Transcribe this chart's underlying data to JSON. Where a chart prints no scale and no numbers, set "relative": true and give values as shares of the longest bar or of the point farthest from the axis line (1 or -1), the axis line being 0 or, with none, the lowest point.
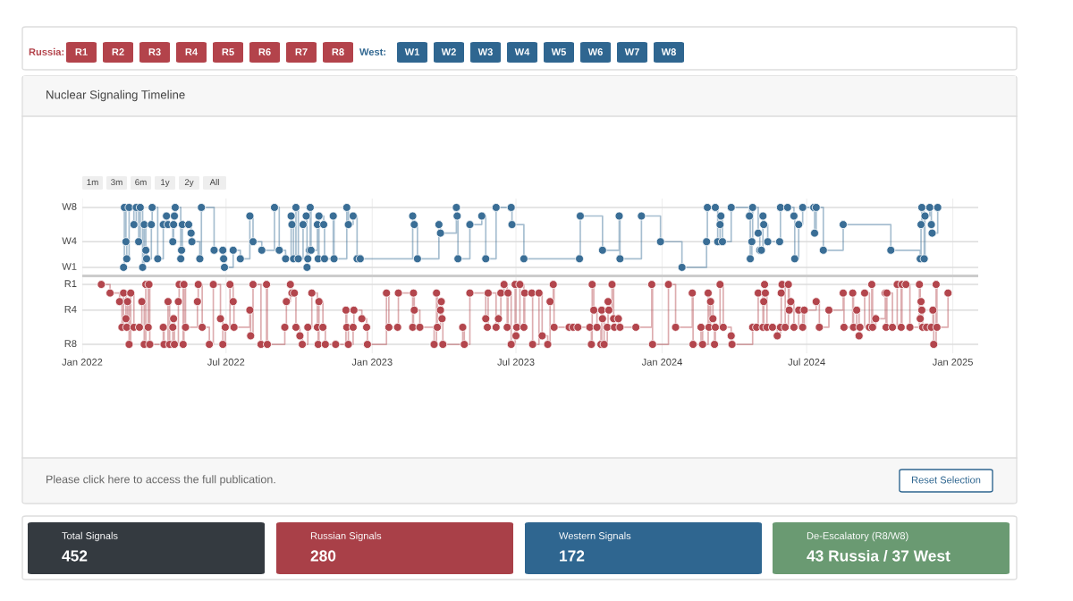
{
  "chart_data": [
    {
      "type": "other",
      "annotations": [
        "Russia:",
        "R1",
        "R2",
        "R3",
        "R4",
        "R5",
        "R6",
        "R7",
        "R8",
        "West:",
        "W1",
        "W2",
        "W3",
        "W4",
        "W5",
        "W6",
        "W7",
        "W8"
      ]
    },
    {
      "type": "step",
      "title": "Nuclear Signaling Timeline",
      "marker": "circle",
      "line_style": "solid",
      "grid": "x",
      "relative": true,
      "xlim": [
        "2022-01-01",
        "2025-02-02"
      ],
      "xticks": [
        {
          "value": "2022-01-01",
          "label": "Jan 2022"
        },
        {
          "value": "2022-07-01",
          "label": "Jul 2022"
        },
        {
          "value": "2023-01-01",
          "label": "Jan 2023"
        },
        {
          "value": "2023-07-01",
          "label": "Jul 2023"
        },
        {
          "value": "2024-01-01",
          "label": "Jan 2024"
        },
        {
          "value": "2024-07-01",
          "label": "Jul 2024"
        },
        {
          "value": "2025-01-01",
          "label": "Jan 2025"
        }
      ],
      "ref_lines": [
        {
          "axis": "y",
          "value": 0,
          "label": "R8",
          "color": "#dcdcdc"
        },
        {
          "axis": "y",
          "value": 0.25,
          "label": "R4",
          "color": "#dcdcdc"
        },
        {
          "axis": "y",
          "value": 0.4375,
          "label": "R1",
          "color": "#dcdcdc"
        },
        {
          "axis": "y",
          "value": 0.5,
          "label": null,
          "color": "#cccccc"
        },
        {
          "axis": "y",
          "value": 0.5625,
          "label": "W1",
          "color": "#dcdcdc"
        },
        {
          "axis": "y",
          "value": 0.75,
          "label": "W4",
          "color": "#dcdcdc"
        },
        {
          "axis": "y",
          "value": 1,
          "label": "W8",
          "color": "#dcdcdc"
        }
      ],
      "annotations": [
        "1m",
        "3m",
        "6m",
        "1y",
        "2y",
        "All",
        "Please click here to access the full publication.",
        "Reset Selection"
      ],
      "series": [
        {
          "color": "#3a6e96",
          "x": [
            "2022-02-22",
            "2022-02-23",
            "2022-02-25",
            "2022-02-26",
            "2022-03-01",
            "2022-03-07",
            "2022-03-10",
            "2022-03-13",
            "2022-03-15",
            "2022-03-18",
            "2022-03-20",
            "2022-03-22",
            "2022-03-23",
            "2022-03-29",
            "2022-03-30",
            "2022-04-06",
            "2022-04-13",
            "2022-04-17",
            "2022-04-19",
            "2022-04-25",
            "2022-04-26",
            "2022-04-27",
            "2022-04-28",
            "2022-05-05",
            "2022-05-06",
            "2022-05-07",
            "2022-05-15",
            "2022-05-18",
            "2022-05-19",
            "2022-05-29",
            "2022-05-31",
            "2022-06-16",
            "2022-06-27",
            "2022-06-28",
            "2022-06-29",
            "2022-07-10",
            "2022-07-19",
            "2022-07-31",
            "2022-08-04",
            "2022-08-15",
            "2022-08-31",
            "2022-09-06",
            "2022-09-14",
            "2022-09-21",
            "2022-09-22",
            "2022-09-24",
            "2022-09-27",
            "2022-09-30",
            "2022-10-06",
            "2022-10-10",
            "2022-10-11",
            "2022-10-12",
            "2022-10-14",
            "2022-10-15",
            "2022-10-16",
            "2022-10-24",
            "2022-10-25",
            "2022-10-26",
            "2022-11-01",
            "2022-11-02",
            "2022-11-13",
            "2022-11-14",
            "2022-11-30",
            "2022-12-02",
            "2022-12-08",
            "2022-12-13",
            "2022-12-17",
            "2023-02-21",
            "2023-02-23",
            "2023-02-27",
            "2023-03-26",
            "2023-03-28",
            "2023-04-17",
            "2023-04-18",
            "2023-04-19",
            "2023-05-04",
            "2023-05-19",
            "2023-05-24",
            "2023-06-06",
            "2023-06-25",
            "2023-06-26",
            "2023-07-11",
            "2023-09-19",
            "2023-09-20",
            "2023-10-18",
            "2023-11-08",
            "2023-11-09",
            "2023-12-06",
            "2023-12-30",
            "2024-01-26",
            "2024-02-26",
            "2024-02-27",
            "2024-03-08",
            "2024-03-11",
            "2024-03-14",
            "2024-03-15",
            "2024-03-17",
            "2024-03-28",
            "2024-04-20",
            "2024-04-21",
            "2024-04-23",
            "2024-04-24",
            "2024-05-01",
            "2024-05-03",
            "2024-05-05",
            "2024-05-07",
            "2024-05-08",
            "2024-05-13",
            "2024-05-28",
            "2024-05-29",
            "2024-06-07",
            "2024-06-15",
            "2024-06-16",
            "2024-06-21",
            "2024-06-26",
            "2024-07-10",
            "2024-07-11",
            "2024-07-13",
            "2024-07-22",
            "2024-08-16",
            "2024-10-15",
            "2024-11-21",
            "2024-11-22",
            "2024-11-23",
            "2024-11-26",
            "2024-11-27",
            "2024-12-03",
            "2024-12-05",
            "2024-12-06",
            "2024-12-13"
          ],
          "values": [
            0.5625,
            1,
            0.75,
            0.625,
            1,
            0.875,
            1,
            0.75,
            1,
            0.5625,
            0.875,
            0.6875,
            0.625,
            0.875,
            1,
            0.625,
            0.875,
            0.9375,
            0.875,
            0.75,
            0.875,
            0.9375,
            1,
            0.625,
            0.6875,
            0.875,
            0.875,
            0.8125,
            0.75,
            0.625,
            1,
            0.6875,
            0.6875,
            0.625,
            0.5625,
            0.6875,
            0.625,
            0.9375,
            0.75,
            0.6875,
            1,
            0.6875,
            0.625,
            0.9375,
            0.875,
            0.625,
            1,
            0.625,
            0.875,
            0.9375,
            0.5625,
            0.625,
            0.6875,
            1,
            0.6875,
            0.875,
            0.625,
            0.9375,
            0.875,
            0.625,
            0.9375,
            0.625,
            1,
            0.875,
            0.9375,
            0.625,
            0.625,
            0.9375,
            0.875,
            0.625,
            0.875,
            0.8125,
            1,
            0.9375,
            0.625,
            0.875,
            0.9375,
            0.625,
            1,
            1,
            0.875,
            0.625,
            0.625,
            0.9375,
            0.6875,
            0.9375,
            0.625,
            0.9375,
            0.75,
            0.5625,
            0.75,
            1,
            1,
            0.75,
            0.875,
            0.9375,
            0.75,
            1,
            0.9375,
            0.625,
            0.75,
            1,
            0.8125,
            0.6875,
            0.6875,
            0.9375,
            0.875,
            0.75,
            0.75,
            1,
            1,
            0.9375,
            0.625,
            0.875,
            1,
            1,
            0.8125,
            1,
            0.6875,
            0.875,
            0.6875,
            0.625,
            0.875,
            1,
            0.625,
            0.9375,
            1,
            0.875,
            0.8125,
            1
          ]
        },
        {
          "color": "#b3464d",
          "x": [
            "2022-01-25",
            "2022-02-05",
            "2022-02-17",
            "2022-02-20",
            "2022-02-22",
            "2022-02-25",
            "2022-02-26",
            "2022-02-27",
            "2022-03-01",
            "2022-03-03",
            "2022-03-07",
            "2022-03-14",
            "2022-03-17",
            "2022-03-20",
            "2022-03-22",
            "2022-03-25",
            "2022-03-26",
            "2022-03-27",
            "2022-04-13",
            "2022-04-14",
            "2022-04-19",
            "2022-04-21",
            "2022-04-25",
            "2022-04-26",
            "2022-04-27",
            "2022-05-02",
            "2022-05-03",
            "2022-05-08",
            "2022-05-09",
            "2022-05-11",
            "2022-05-26",
            "2022-05-27",
            "2022-06-01",
            "2022-06-10",
            "2022-06-15",
            "2022-06-24",
            "2022-06-27",
            "2022-06-30",
            "2022-07-06",
            "2022-07-10",
            "2022-07-11",
            "2022-07-31",
            "2022-08-01",
            "2022-08-04",
            "2022-08-14",
            "2022-08-21",
            "2022-08-22",
            "2022-09-13",
            "2022-09-15",
            "2022-09-20",
            "2022-09-22",
            "2022-09-25",
            "2022-09-27",
            "2022-10-02",
            "2022-10-05",
            "2022-10-12",
            "2022-10-17",
            "2022-10-24",
            "2022-10-25",
            "2022-10-26",
            "2022-10-31",
            "2022-11-03",
            "2022-11-16",
            "2022-11-29",
            "2022-11-30",
            "2022-12-02",
            "2022-12-08",
            "2022-12-09",
            "2022-12-19",
            "2022-12-25",
            "2022-12-26",
            "2023-01-19",
            "2023-01-22",
            "2023-02-02",
            "2023-02-03",
            "2023-02-21",
            "2023-02-22",
            "2023-02-23",
            "2023-03-02",
            "2023-03-20",
            "2023-03-23",
            "2023-03-24",
            "2023-03-28",
            "2023-03-29",
            "2023-03-30",
            "2023-03-31",
            "2023-04-25",
            "2023-04-27",
            "2023-05-04",
            "2023-05-24",
            "2023-05-26",
            "2023-05-27",
            "2023-06-06",
            "2023-06-09",
            "2023-06-12",
            "2023-06-16",
            "2023-06-20",
            "2023-06-21",
            "2023-06-25",
            "2023-06-30",
            "2023-07-01",
            "2023-07-02",
            "2023-07-06",
            "2023-07-11",
            "2023-07-12",
            "2023-07-21",
            "2023-07-22",
            "2023-07-30",
            "2023-08-03",
            "2023-08-10",
            "2023-08-13",
            "2023-08-17",
            "2023-08-18",
            "2023-09-06",
            "2023-09-11",
            "2023-09-17",
            "2023-10-02",
            "2023-10-04",
            "2023-10-05",
            "2023-10-07",
            "2023-10-11",
            "2023-10-16",
            "2023-10-17",
            "2023-10-18",
            "2023-10-20",
            "2023-10-24",
            "2023-10-25",
            "2023-10-26",
            "2023-10-30",
            "2023-11-01",
            "2023-11-02",
            "2023-11-07",
            "2023-11-09",
            "2023-11-29",
            "2023-12-19",
            "2023-12-20",
            "2024-01-09",
            "2024-01-18",
            "2024-02-08",
            "2024-02-09",
            "2024-02-19",
            "2024-02-21",
            "2024-02-28",
            "2024-02-29",
            "2024-03-02",
            "2024-03-05",
            "2024-03-07",
            "2024-03-08",
            "2024-03-14",
            "2024-03-18",
            "2024-03-28",
            "2024-03-29",
            "2024-04-24",
            "2024-04-29",
            "2024-05-01",
            "2024-05-07",
            "2024-05-08",
            "2024-05-09",
            "2024-05-10",
            "2024-05-12",
            "2024-05-19",
            "2024-05-25",
            "2024-05-29",
            "2024-05-30",
            "2024-05-31",
            "2024-06-04",
            "2024-06-08",
            "2024-06-09",
            "2024-06-11",
            "2024-06-15",
            "2024-06-21",
            "2024-06-26",
            "2024-06-28",
            "2024-07-13",
            "2024-07-17",
            "2024-07-29",
            "2024-08-16",
            "2024-08-17",
            "2024-08-28",
            "2024-08-29",
            "2024-09-02",
            "2024-09-05",
            "2024-09-06",
            "2024-09-12",
            "2024-09-18",
            "2024-09-21",
            "2024-09-22",
            "2024-09-26",
            "2024-10-08",
            "2024-10-09",
            "2024-10-10",
            "2024-10-17",
            "2024-10-23",
            "2024-10-28",
            "2024-10-29",
            "2024-11-03",
            "2024-11-08",
            "2024-11-20",
            "2024-11-21",
            "2024-11-22",
            "2024-11-23",
            "2024-11-24",
            "2024-11-29",
            "2024-12-05",
            "2024-12-07",
            "2024-12-08",
            "2024-12-11",
            "2024-12-12",
            "2024-12-26"
          ],
          "values": [
            0.4375,
            0.375,
            0.3125,
            0.125,
            0.375,
            0.1875,
            0.125,
            0.3125,
            0,
            0.375,
            0.125,
            0.125,
            0.3125,
            0,
            0.4375,
            0.125,
            0.4375,
            0,
            0.125,
            0,
            0.3125,
            0,
            0.125,
            0.1875,
            0,
            0.3125,
            0.4375,
            0,
            0.4375,
            0.125,
            0.3125,
            0.4375,
            0.125,
            0,
            0.4375,
            0.1875,
            0,
            0.125,
            0.4375,
            0.3125,
            0.125,
            0.25,
            0.0625,
            0.4375,
            0,
            0.4375,
            0,
            0.125,
            0.3125,
            0.4375,
            0.375,
            0.375,
            0.125,
            0.0625,
            0,
            0.125,
            0.375,
            0.125,
            0,
            0.3125,
            0.125,
            0,
            0,
            0.25,
            0.125,
            0,
            0.125,
            0.25,
            0.1875,
            0.125,
            0,
            0.375,
            0.125,
            0.125,
            0.375,
            0.125,
            0.375,
            0.25,
            0.125,
            0,
            0.375,
            0.125,
            0.25,
            0.3125,
            0.1875,
            0,
            0.125,
            0,
            0.375,
            0.1875,
            0.125,
            0.375,
            0.125,
            0.1875,
            0.375,
            0.4375,
            0.125,
            0.375,
            0,
            0.4375,
            0.0625,
            0.125,
            0.4375,
            0.125,
            0.375,
            0.375,
            0,
            0.375,
            0.0625,
            0,
            0.3125,
            0.4375,
            0.125,
            0.125,
            0.125,
            0.125,
            0.125,
            0,
            0.4375,
            0.25,
            0.125,
            0,
            0.25,
            0.1875,
            0,
            0.125,
            0.3125,
            0.25,
            0.4375,
            0.1875,
            0.125,
            0.1875,
            0.125,
            0.125,
            0.4375,
            0,
            0.4375,
            0.125,
            0.375,
            0,
            0.125,
            0,
            0.375,
            0.125,
            0.3125,
            0.1875,
            0,
            0.125,
            0.4375,
            0.125,
            0.0625,
            0,
            0.125,
            0.125,
            0.375,
            0.125,
            0.3125,
            0.4375,
            0.375,
            0.125,
            0.125,
            0.0625,
            0.125,
            0.375,
            0.4375,
            0.125,
            0.4375,
            0.25,
            0.3125,
            0.125,
            0.25,
            0.125,
            0.25,
            0.3125,
            0.125,
            0.25,
            0.375,
            0.125,
            0.375,
            0.125,
            0.25,
            0.0625,
            0.125,
            0.375,
            0.125,
            0.4375,
            0.125,
            0.1875,
            0.375,
            0.125,
            0.375,
            0.125,
            0.4375,
            0.125,
            0.4375,
            0.4375,
            0.125,
            0.4375,
            0.1875,
            0.3125,
            0.25,
            0.125,
            0.125,
            0.125,
            0.25,
            0,
            0.4375,
            0.125,
            0.375
          ]
        }
      ]
    },
    {
      "type": "other",
      "annotations": [
        "Total Signals",
        "452",
        "Russian Signals",
        "280",
        "Western Signals",
        "172",
        "De-Escalatory (R8/W8)",
        "43 Russia / 37 West"
      ]
    }
  ]
}
